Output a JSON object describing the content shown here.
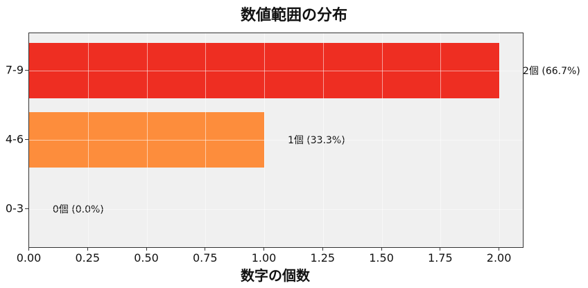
{
  "chart_data": {
    "type": "bar",
    "orientation": "horizontal",
    "title": "数値範囲の分布",
    "xlabel": "数字の個数",
    "ylabel": "",
    "categories": [
      "7-9",
      "4-6",
      "0-3"
    ],
    "values": [
      2,
      1,
      0
    ],
    "colors": [
      "#ee2e22",
      "#fd8d3c",
      "#fee5d9"
    ],
    "bar_labels": [
      "2個 (66.7%)",
      "1個 (33.3%)",
      "0個 (0.0%)"
    ],
    "xlim": [
      0,
      2.1
    ],
    "xticks": [
      "0.00",
      "0.25",
      "0.50",
      "0.75",
      "1.00",
      "1.25",
      "1.50",
      "1.75",
      "2.00"
    ],
    "xtick_values": [
      0,
      0.25,
      0.5,
      0.75,
      1.0,
      1.25,
      1.5,
      1.75,
      2.0
    ],
    "grid": true,
    "legend": null,
    "background": "#f0f0f0"
  }
}
